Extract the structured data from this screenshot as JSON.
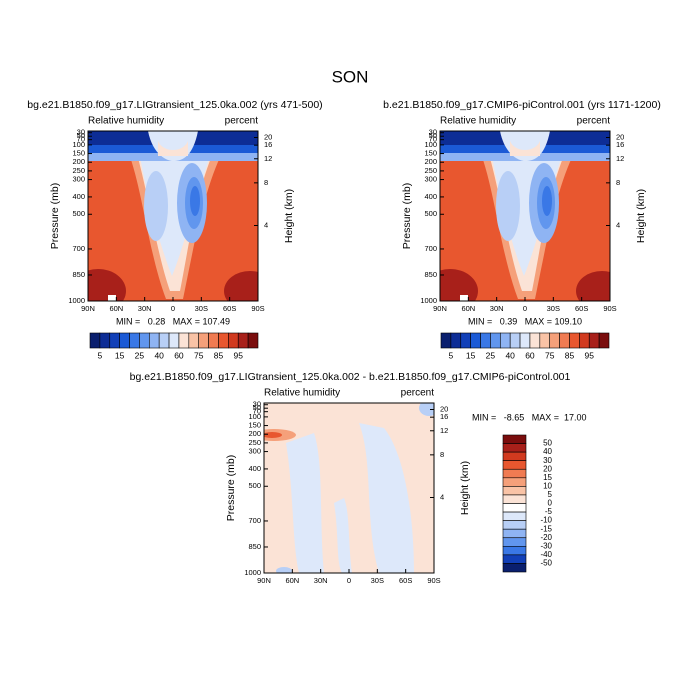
{
  "title": "SON",
  "chart_data": [
    {
      "type": "contour",
      "title": "bg.e21.B1850.f09_g17.LIGtransient_125.0ka.002 (yrs 471-500)",
      "left_label": "Relative humidity",
      "right_label": "percent",
      "ylabel": "Pressure (mb)",
      "y2label": "Height (km)",
      "stats": "MIN =   0.28   MAX = 107.49",
      "xlim": [
        90,
        -90
      ],
      "xticks": [
        {
          "value": 90,
          "label": "90N"
        },
        {
          "value": 60,
          "label": "60N"
        },
        {
          "value": 30,
          "label": "30N"
        },
        0,
        {
          "value": -30,
          "label": "30S"
        },
        {
          "value": -60,
          "label": "60S"
        },
        {
          "value": -90,
          "label": "90S"
        }
      ],
      "ylim": [
        1000,
        20
      ],
      "yticks": [
        30,
        50,
        70,
        100,
        150,
        200,
        250,
        300,
        400,
        500,
        700,
        850,
        1000
      ],
      "y2ticks": [
        4,
        8,
        12,
        16,
        20
      ],
      "colorbar": {
        "labels": [
          5,
          15,
          25,
          40,
          60,
          75,
          85,
          95
        ],
        "colors": [
          "#0a1f6e",
          "#0d2d96",
          "#1240b8",
          "#1b5ad6",
          "#3a78e6",
          "#6196ee",
          "#8fb4f3",
          "#b8cff6",
          "#dde8fa",
          "#fbe3d6",
          "#f9c3a6",
          "#f5a07a",
          "#f07b52",
          "#e8572f",
          "#d13a1f",
          "#a8201a",
          "#7a0d0d"
        ]
      }
    },
    {
      "type": "contour",
      "title": "b.e21.B1850.f09_g17.CMIP6-piControl.001 (yrs 1171-1200)",
      "left_label": "Relative humidity",
      "right_label": "percent",
      "ylabel": "Pressure (mb)",
      "y2label": "Height (km)",
      "stats": "MIN =   0.39   MAX = 109.10",
      "xlim": [
        90,
        -90
      ],
      "xticks": [
        {
          "value": 90,
          "label": "90N"
        },
        {
          "value": 60,
          "label": "60N"
        },
        {
          "value": 30,
          "label": "30N"
        },
        0,
        {
          "value": -30,
          "label": "30S"
        },
        {
          "value": -60,
          "label": "60S"
        },
        {
          "value": -90,
          "label": "90S"
        }
      ],
      "ylim": [
        1000,
        20
      ],
      "yticks": [
        30,
        50,
        70,
        100,
        150,
        200,
        250,
        300,
        400,
        500,
        700,
        850,
        1000
      ],
      "y2ticks": [
        4,
        8,
        12,
        16,
        20
      ],
      "colorbar": {
        "labels": [
          5,
          15,
          25,
          40,
          60,
          75,
          85,
          95
        ],
        "colors": [
          "#0a1f6e",
          "#0d2d96",
          "#1240b8",
          "#1b5ad6",
          "#3a78e6",
          "#6196ee",
          "#8fb4f3",
          "#b8cff6",
          "#dde8fa",
          "#fbe3d6",
          "#f9c3a6",
          "#f5a07a",
          "#f07b52",
          "#e8572f",
          "#d13a1f",
          "#a8201a",
          "#7a0d0d"
        ]
      }
    },
    {
      "type": "contour",
      "title": "bg.e21.B1850.f09_g17.LIGtransient_125.0ka.002 - b.e21.B1850.f09_g17.CMIP6-piControl.001",
      "left_label": "Relative humidity",
      "right_label": "percent",
      "ylabel": "Pressure (mb)",
      "y2label": "Height (km)",
      "stats": "MIN =   -8.65   MAX =  17.00",
      "xlim": [
        90,
        -90
      ],
      "xticks": [
        {
          "value": 90,
          "label": "90N"
        },
        {
          "value": 60,
          "label": "60N"
        },
        {
          "value": 30,
          "label": "30N"
        },
        0,
        {
          "value": -30,
          "label": "30S"
        },
        {
          "value": -60,
          "label": "60S"
        },
        {
          "value": -90,
          "label": "90S"
        }
      ],
      "ylim": [
        1000,
        20
      ],
      "yticks": [
        30,
        50,
        70,
        100,
        150,
        200,
        250,
        300,
        400,
        500,
        700,
        850,
        1000
      ],
      "y2ticks": [
        4,
        8,
        12,
        16,
        20
      ],
      "colorbar": {
        "labels": [
          50,
          40,
          30,
          20,
          15,
          10,
          5,
          0,
          -5,
          -10,
          -15,
          -20,
          -30,
          -40,
          -50
        ],
        "colors": [
          "#7a0d0d",
          "#a8201a",
          "#d13a1f",
          "#e8572f",
          "#f07b52",
          "#f5a07a",
          "#f9c3a6",
          "#fbe3d6",
          "#ffffff",
          "#dde8fa",
          "#b8cff6",
          "#8fb4f3",
          "#6196ee",
          "#3a78e6",
          "#1240b8",
          "#0a1f6e"
        ]
      }
    }
  ]
}
